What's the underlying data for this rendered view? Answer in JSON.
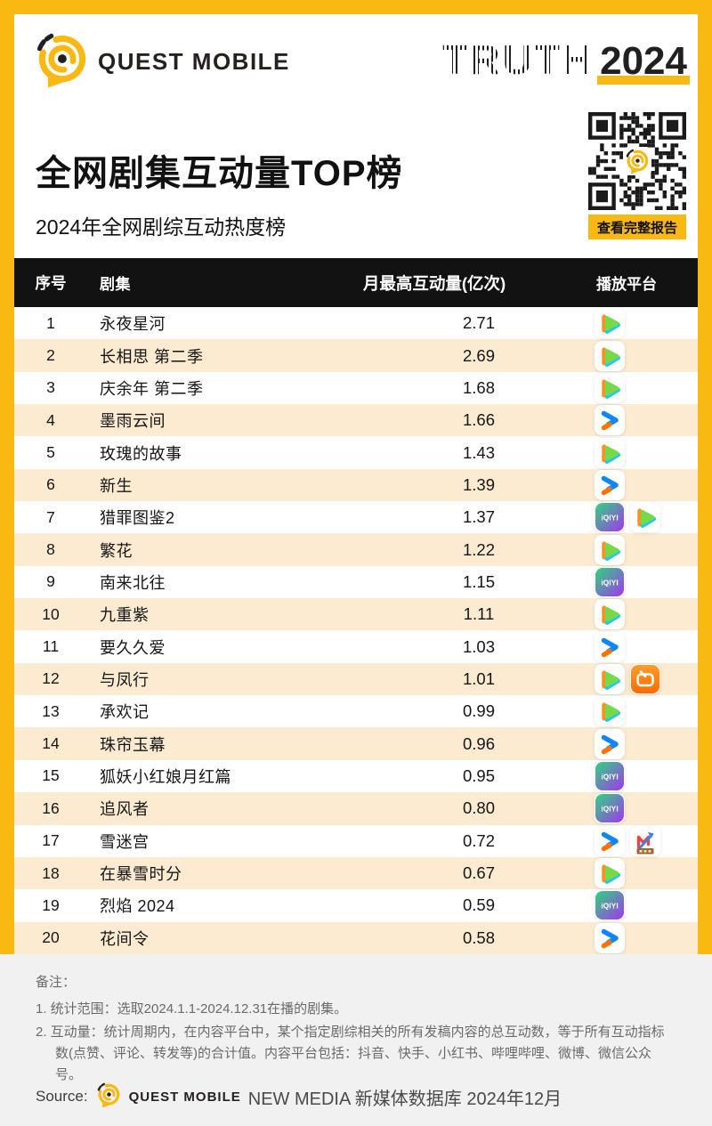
{
  "page": {
    "brand": "QUEST MOBILE",
    "truth_label": "TRUTH",
    "truth_year": "2024",
    "title": "全网剧集互动量TOP榜",
    "subtitle": "2024年全网剧综互动热度榜",
    "qr_button": "查看完整报告"
  },
  "table": {
    "headers": {
      "index": "序号",
      "title": "剧集",
      "value": "月最高互动量(亿次)",
      "platform": "播放平台"
    },
    "rows": [
      {
        "index": "1",
        "title": "永夜星河",
        "value": "2.71",
        "platforms": [
          "tencent-video"
        ]
      },
      {
        "index": "2",
        "title": "长相思 第二季",
        "value": "2.69",
        "platforms": [
          "tencent-video"
        ]
      },
      {
        "index": "3",
        "title": "庆余年 第二季",
        "value": "1.68",
        "platforms": [
          "tencent-video"
        ]
      },
      {
        "index": "4",
        "title": "墨雨云间",
        "value": "1.66",
        "platforms": [
          "youku"
        ]
      },
      {
        "index": "5",
        "title": "玫瑰的故事",
        "value": "1.43",
        "platforms": [
          "tencent-video"
        ]
      },
      {
        "index": "6",
        "title": "新生",
        "value": "1.39",
        "platforms": [
          "youku"
        ]
      },
      {
        "index": "7",
        "title": "猎罪图鉴2",
        "value": "1.37",
        "platforms": [
          "iqiyi",
          "tencent-video"
        ]
      },
      {
        "index": "8",
        "title": "繁花",
        "value": "1.22",
        "platforms": [
          "tencent-video"
        ]
      },
      {
        "index": "9",
        "title": "南来北往",
        "value": "1.15",
        "platforms": [
          "iqiyi"
        ]
      },
      {
        "index": "10",
        "title": "九重紫",
        "value": "1.11",
        "platforms": [
          "tencent-video"
        ]
      },
      {
        "index": "11",
        "title": "要久久爱",
        "value": "1.03",
        "platforms": [
          "youku"
        ]
      },
      {
        "index": "12",
        "title": "与凤行",
        "value": "1.01",
        "platforms": [
          "tencent-video",
          "mango-tv"
        ]
      },
      {
        "index": "13",
        "title": "承欢记",
        "value": "0.99",
        "platforms": [
          "tencent-video"
        ]
      },
      {
        "index": "14",
        "title": "珠帘玉幕",
        "value": "0.96",
        "platforms": [
          "youku"
        ]
      },
      {
        "index": "15",
        "title": "狐妖小红娘月红篇",
        "value": "0.95",
        "platforms": [
          "iqiyi"
        ]
      },
      {
        "index": "16",
        "title": "追风者",
        "value": "0.80",
        "platforms": [
          "iqiyi"
        ]
      },
      {
        "index": "17",
        "title": "雪迷宫",
        "value": "0.72",
        "platforms": [
          "youku",
          "m-arrow"
        ]
      },
      {
        "index": "18",
        "title": "在暴雪时分",
        "value": "0.67",
        "platforms": [
          "tencent-video"
        ]
      },
      {
        "index": "19",
        "title": "烈焰 2024",
        "value": "0.59",
        "platforms": [
          "iqiyi"
        ]
      },
      {
        "index": "20",
        "title": "花间令",
        "value": "0.58",
        "platforms": [
          "youku"
        ]
      }
    ]
  },
  "chart_data": {
    "type": "table",
    "title": "全网剧集互动量TOP榜",
    "subtitle": "2024年全网剧综互动热度榜",
    "columns": [
      "序号",
      "剧集",
      "月最高互动量(亿次)",
      "播放平台"
    ],
    "rows": [
      [
        1,
        "永夜星河",
        2.71,
        [
          "tencent-video"
        ]
      ],
      [
        2,
        "长相思 第二季",
        2.69,
        [
          "tencent-video"
        ]
      ],
      [
        3,
        "庆余年 第二季",
        1.68,
        [
          "tencent-video"
        ]
      ],
      [
        4,
        "墨雨云间",
        1.66,
        [
          "youku"
        ]
      ],
      [
        5,
        "玫瑰的故事",
        1.43,
        [
          "tencent-video"
        ]
      ],
      [
        6,
        "新生",
        1.39,
        [
          "youku"
        ]
      ],
      [
        7,
        "猎罪图鉴2",
        1.37,
        [
          "iqiyi",
          "tencent-video"
        ]
      ],
      [
        8,
        "繁花",
        1.22,
        [
          "tencent-video"
        ]
      ],
      [
        9,
        "南来北往",
        1.15,
        [
          "iqiyi"
        ]
      ],
      [
        10,
        "九重紫",
        1.11,
        [
          "tencent-video"
        ]
      ],
      [
        11,
        "要久久爱",
        1.03,
        [
          "youku"
        ]
      ],
      [
        12,
        "与凤行",
        1.01,
        [
          "tencent-video",
          "mango-tv"
        ]
      ],
      [
        13,
        "承欢记",
        0.99,
        [
          "tencent-video"
        ]
      ],
      [
        14,
        "珠帘玉幕",
        0.96,
        [
          "youku"
        ]
      ],
      [
        15,
        "狐妖小红娘月红篇",
        0.95,
        [
          "iqiyi"
        ]
      ],
      [
        16,
        "追风者",
        0.8,
        [
          "iqiyi"
        ]
      ],
      [
        17,
        "雪迷宫",
        0.72,
        [
          "youku",
          "m-arrow"
        ]
      ],
      [
        18,
        "在暴雪时分",
        0.67,
        [
          "tencent-video"
        ]
      ],
      [
        19,
        "烈焰 2024",
        0.59,
        [
          "iqiyi"
        ]
      ],
      [
        20,
        "花间令",
        0.58,
        [
          "youku"
        ]
      ]
    ]
  },
  "notes": {
    "label": "备注：",
    "items": [
      "1. 统计范围：选取2024.1.1-2024.12.31在播的剧集。",
      "2. 互动量：统计周期内，在内容平台中，某个指定剧综相关的所有发稿内容的总互动数，等于所有互动指标数(点赞、评论、转发等)的合计值。内容平台包括：抖音、快手、小红书、哔哩哔哩、微博、微信公众号。"
    ]
  },
  "source": {
    "label": "Source:",
    "brand": "QUEST MOBILE",
    "text": "NEW MEDIA 新媒体数据库 2024年12月"
  },
  "colors": {
    "accent_yellow": "#F9B812",
    "row_stripe": "#FCEAD1",
    "table_header_bg": "#121212",
    "footer_bg": "#F1F1F1"
  }
}
